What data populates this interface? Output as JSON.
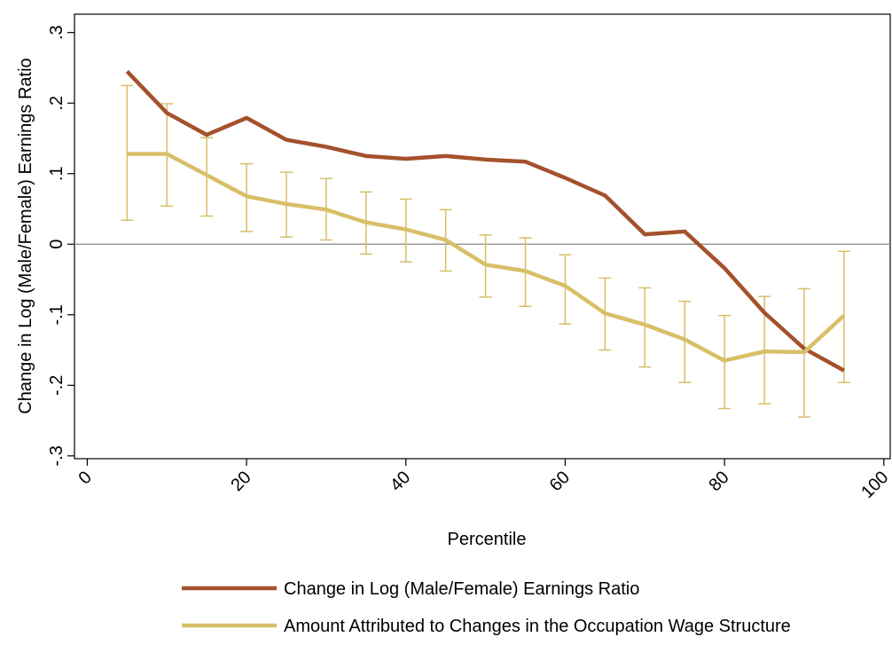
{
  "chart_data": {
    "type": "line",
    "x_label": "Percentile",
    "y_label": "Change in Log (Male/Female) Earnings Ratio",
    "x": [
      5,
      10,
      15,
      20,
      25,
      30,
      35,
      40,
      45,
      50,
      55,
      60,
      65,
      70,
      75,
      80,
      85,
      90,
      95
    ],
    "series": [
      {
        "name": "Change in Log (Male/Female) Earnings Ratio",
        "color": "#a4512c",
        "values": [
          0.245,
          0.186,
          0.155,
          0.179,
          0.148,
          0.138,
          0.125,
          0.121,
          0.125,
          0.12,
          0.117,
          0.094,
          0.069,
          0.014,
          0.018,
          -0.034,
          -0.097,
          -0.148,
          -0.179
        ]
      },
      {
        "name": "Amount Attributed to Changes in the Occupation Wage Structure",
        "color": "#d8bf68",
        "values": [
          0.128,
          0.128,
          0.098,
          0.068,
          0.057,
          0.049,
          0.031,
          0.021,
          0.006,
          -0.029,
          -0.038,
          -0.059,
          -0.098,
          -0.114,
          -0.135,
          -0.165,
          -0.152,
          -0.153,
          -0.101
        ],
        "upper": [
          0.225,
          0.199,
          0.151,
          0.114,
          0.102,
          0.093,
          0.074,
          0.064,
          0.049,
          0.013,
          0.009,
          -0.015,
          -0.048,
          -0.062,
          -0.081,
          -0.101,
          -0.074,
          -0.063,
          -0.01
        ],
        "lower": [
          0.034,
          0.054,
          0.04,
          0.018,
          0.01,
          0.006,
          -0.014,
          -0.025,
          -0.038,
          -0.075,
          -0.088,
          -0.113,
          -0.15,
          -0.174,
          -0.196,
          -0.233,
          -0.226,
          -0.245,
          -0.196
        ]
      }
    ],
    "xlim": [
      -1.6,
      100.8
    ],
    "ylim": [
      -0.304,
      0.326
    ],
    "xticks": [
      0,
      20,
      40,
      60,
      80,
      100
    ],
    "yticks": [
      {
        "value": -0.3,
        "label": "-.3"
      },
      {
        "value": -0.2,
        "label": "-.2"
      },
      {
        "value": -0.1,
        "label": "-.1"
      },
      0,
      {
        "value": 0.1,
        "label": ".1"
      },
      {
        "value": 0.2,
        "label": ".2"
      },
      {
        "value": 0.3,
        "label": ".3"
      }
    ],
    "reference_line": 0,
    "legend": "bottom"
  }
}
